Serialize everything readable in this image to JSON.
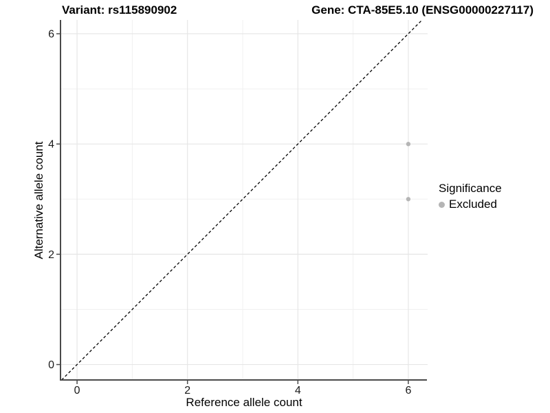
{
  "chart_data": {
    "type": "scatter",
    "title_left": "Variant: rs115890902",
    "title_right": "Gene: CTA-85E5.10 (ENSG00000227117)",
    "xlabel": "Reference allele count",
    "ylabel": "Alternative allele count",
    "xticks": [
      0,
      2,
      4,
      6
    ],
    "yticks": [
      0,
      2,
      4,
      6
    ],
    "xlim": [
      -0.3,
      6.35
    ],
    "ylim": [
      -0.28,
      6.25
    ],
    "grid": "major and minor gridlines at every integer, light gray on white",
    "points": [
      {
        "x": 6,
        "y": 4,
        "significance": "Excluded"
      },
      {
        "x": 6,
        "y": 3,
        "significance": "Excluded"
      }
    ],
    "reference_line": {
      "type": "identity y=x",
      "linetype": "dashed",
      "color": "#000000"
    },
    "legend": {
      "title": "Significance",
      "position": "right",
      "items": [
        {
          "label": "Excluded",
          "color": "#b5b5b5"
        }
      ]
    }
  },
  "colors": {
    "background": "#ffffff",
    "grid_major": "#e6e6e6",
    "grid_minor": "#f0f0f0",
    "axis_line": "#4a4a4a",
    "tick_mark": "#4a4a4a",
    "tick_text": "#1a1a1a",
    "point": "#b5b5b5",
    "reference_line": "#000000"
  }
}
